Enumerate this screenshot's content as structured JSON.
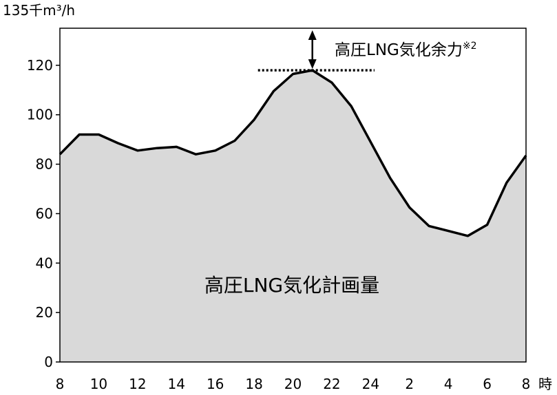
{
  "chart_data": {
    "type": "area",
    "y_unit_label": "135千m³/h",
    "x_unit_label": "時",
    "x_ticks": [
      "8",
      "10",
      "12",
      "14",
      "16",
      "18",
      "20",
      "22",
      "24",
      "2",
      "4",
      "6",
      "8"
    ],
    "y_ticks": [
      0,
      20,
      40,
      60,
      80,
      100,
      120
    ],
    "ylim": [
      0,
      135
    ],
    "grid": false,
    "x_hours": [
      8,
      9,
      10,
      11,
      12,
      13,
      14,
      15,
      16,
      17,
      18,
      19,
      20,
      21,
      22,
      23,
      24,
      25,
      26,
      27,
      28,
      29,
      30,
      31,
      32
    ],
    "series": [
      {
        "values": [
          84,
          92,
          92,
          88.5,
          85.5,
          86.5,
          87,
          84,
          85.5,
          89.5,
          98,
          109.5,
          116.5,
          118,
          113,
          103.5,
          89,
          74.5,
          62.5,
          55,
          53,
          51,
          55.5,
          72.5,
          83.5
        ]
      }
    ],
    "annotations": {
      "area_label": "高圧LNG気化計画量",
      "margin_label": "高圧LNG気化余力",
      "margin_note": "※2",
      "peak_value": 118,
      "dotted_line_x_range": [
        18.2,
        24.2
      ]
    },
    "colors": {
      "fill": "#d9d9d9",
      "line": "#000000"
    }
  }
}
